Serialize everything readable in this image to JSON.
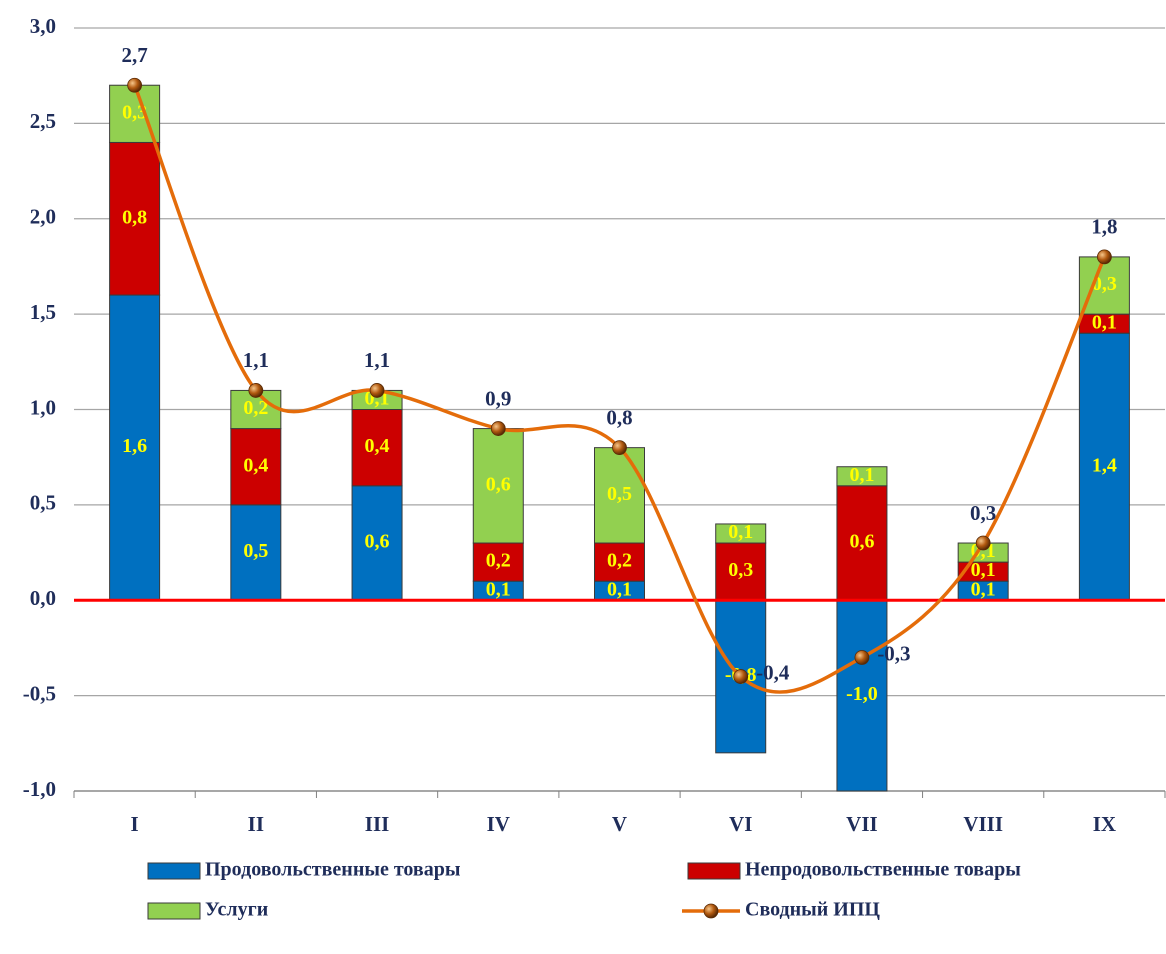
{
  "chart_data": {
    "type": "bar",
    "categories": [
      "I",
      "II",
      "III",
      "IV",
      "V",
      "VI",
      "VII",
      "VIII",
      "IX"
    ],
    "series": [
      {
        "name": "Продовольственные товары",
        "color": "#0070c0",
        "values": [
          1.6,
          0.5,
          0.6,
          0.1,
          0.1,
          -0.8,
          -1.0,
          0.1,
          1.4
        ],
        "value_labels": [
          "1,6",
          "0,5",
          "0,6",
          "0,1",
          "0,1",
          "-0,8",
          "-1,0",
          "0,1",
          "1,4"
        ]
      },
      {
        "name": "Непродовольственные товары",
        "color": "#cc0000",
        "values": [
          0.8,
          0.4,
          0.4,
          0.2,
          0.2,
          0.3,
          0.6,
          0.1,
          0.1
        ],
        "value_labels": [
          "0,8",
          "0,4",
          "0,4",
          "0,2",
          "0,2",
          "0,3",
          "0,6",
          "0,1",
          "0,1"
        ]
      },
      {
        "name": "Услуги",
        "color": "#92d050",
        "values": [
          0.3,
          0.2,
          0.1,
          0.6,
          0.5,
          0.1,
          0.1,
          0.1,
          0.3
        ],
        "value_labels": [
          "0,3",
          "0,2",
          "0,1",
          "0,6",
          "0,5",
          "0,1",
          "0,1",
          "0,1",
          "0,3"
        ]
      },
      {
        "name": "Сводный ИПЦ",
        "type": "line",
        "color": "#e46c0a",
        "values": [
          2.7,
          1.1,
          1.1,
          0.9,
          0.8,
          -0.4,
          -0.3,
          0.3,
          1.8
        ],
        "value_labels": [
          "2,7",
          "1,1",
          "1,1",
          "0,9",
          "0,8",
          "-0,4",
          "-0,3",
          "0,3",
          "1,8"
        ]
      }
    ],
    "ylim": [
      -1.0,
      3.0
    ],
    "yticks": [
      {
        "value": -1.0,
        "label": "-1,0"
      },
      {
        "value": -0.5,
        "label": "-0,5"
      },
      {
        "value": 0,
        "label": "0,0"
      },
      {
        "value": 0.5,
        "label": "0,5"
      },
      {
        "value": 1.0,
        "label": "1,0"
      },
      {
        "value": 1.5,
        "label": "1,5"
      },
      {
        "value": 2.0,
        "label": "2,0"
      },
      {
        "value": 2.5,
        "label": "2,5"
      },
      {
        "value": 3.0,
        "label": "3,0"
      }
    ],
    "grid": true,
    "stacked": true,
    "legend": "bottom"
  }
}
